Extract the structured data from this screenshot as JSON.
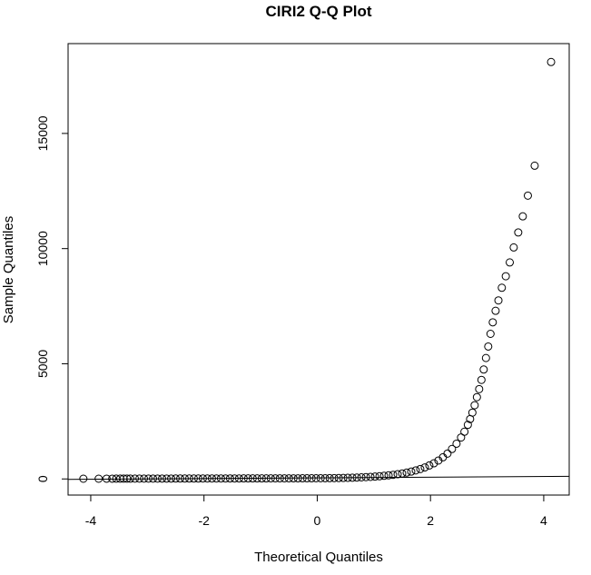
{
  "chart_data": {
    "type": "scatter",
    "title": "CIRI2 Q-Q Plot",
    "xlabel": "Theoretical Quantiles",
    "ylabel": "Sample Quantiles",
    "xlim": [
      -4.4,
      4.45
    ],
    "ylim": [
      -700,
      18900
    ],
    "x_ticks": [
      -4,
      -2,
      0,
      2,
      4
    ],
    "y_ticks": [
      0,
      5000,
      10000,
      15000
    ],
    "x_tick_labels": [
      "-4",
      "-2",
      "0",
      "2",
      "4"
    ],
    "y_tick_labels": [
      "0",
      "5000",
      "10000",
      "15000"
    ],
    "reference_line": {
      "x": [
        -4.4,
        4.45
      ],
      "y": [
        -20,
        115
      ]
    },
    "points": [
      [
        -4.13,
        10
      ],
      [
        -3.86,
        10
      ],
      [
        -3.72,
        12
      ],
      [
        -3.62,
        12
      ],
      [
        -3.55,
        13
      ],
      [
        -3.48,
        13
      ],
      [
        -3.42,
        14
      ],
      [
        -3.36,
        14
      ],
      [
        -3.3,
        14
      ],
      [
        -3.22,
        15
      ],
      [
        -3.14,
        15
      ],
      [
        -3.06,
        15
      ],
      [
        -2.98,
        16
      ],
      [
        -2.9,
        16
      ],
      [
        -2.82,
        16
      ],
      [
        -2.74,
        17
      ],
      [
        -2.66,
        17
      ],
      [
        -2.58,
        17
      ],
      [
        -2.5,
        18
      ],
      [
        -2.42,
        18
      ],
      [
        -2.34,
        18
      ],
      [
        -2.26,
        19
      ],
      [
        -2.18,
        19
      ],
      [
        -2.1,
        19
      ],
      [
        -2.02,
        20
      ],
      [
        -1.94,
        20
      ],
      [
        -1.86,
        20
      ],
      [
        -1.78,
        21
      ],
      [
        -1.7,
        21
      ],
      [
        -1.62,
        21
      ],
      [
        -1.54,
        22
      ],
      [
        -1.46,
        22
      ],
      [
        -1.38,
        22
      ],
      [
        -1.3,
        23
      ],
      [
        -1.22,
        23
      ],
      [
        -1.14,
        23
      ],
      [
        -1.06,
        24
      ],
      [
        -0.98,
        24
      ],
      [
        -0.9,
        24
      ],
      [
        -0.82,
        25
      ],
      [
        -0.74,
        25
      ],
      [
        -0.66,
        25
      ],
      [
        -0.58,
        26
      ],
      [
        -0.5,
        26
      ],
      [
        -0.42,
        27
      ],
      [
        -0.34,
        27
      ],
      [
        -0.26,
        28
      ],
      [
        -0.18,
        28
      ],
      [
        -0.1,
        29
      ],
      [
        -0.02,
        30
      ],
      [
        0.06,
        31
      ],
      [
        0.14,
        32
      ],
      [
        0.22,
        34
      ],
      [
        0.3,
        36
      ],
      [
        0.38,
        39
      ],
      [
        0.46,
        43
      ],
      [
        0.54,
        48
      ],
      [
        0.62,
        54
      ],
      [
        0.7,
        61
      ],
      [
        0.78,
        69
      ],
      [
        0.86,
        79
      ],
      [
        0.94,
        90
      ],
      [
        1.02,
        103
      ],
      [
        1.1,
        118
      ],
      [
        1.18,
        136
      ],
      [
        1.26,
        156
      ],
      [
        1.34,
        179
      ],
      [
        1.42,
        206
      ],
      [
        1.5,
        238
      ],
      [
        1.58,
        275
      ],
      [
        1.66,
        318
      ],
      [
        1.74,
        370
      ],
      [
        1.82,
        430
      ],
      [
        1.9,
        500
      ],
      [
        1.98,
        585
      ],
      [
        2.06,
        680
      ],
      [
        2.14,
        800
      ],
      [
        2.22,
        940
      ],
      [
        2.3,
        1100
      ],
      [
        2.38,
        1300
      ],
      [
        2.46,
        1530
      ],
      [
        2.54,
        1800
      ],
      [
        2.6,
        2050
      ],
      [
        2.66,
        2350
      ],
      [
        2.7,
        2600
      ],
      [
        2.74,
        2880
      ],
      [
        2.78,
        3200
      ],
      [
        2.82,
        3550
      ],
      [
        2.86,
        3900
      ],
      [
        2.9,
        4300
      ],
      [
        2.94,
        4750
      ],
      [
        2.98,
        5250
      ],
      [
        3.02,
        5750
      ],
      [
        3.06,
        6300
      ],
      [
        3.1,
        6800
      ],
      [
        3.15,
        7300
      ],
      [
        3.2,
        7750
      ],
      [
        3.26,
        8300
      ],
      [
        3.33,
        8800
      ],
      [
        3.4,
        9400
      ],
      [
        3.47,
        10050
      ],
      [
        3.55,
        10700
      ],
      [
        3.63,
        11400
      ],
      [
        3.72,
        12300
      ],
      [
        3.84,
        13600
      ],
      [
        4.13,
        18100
      ]
    ]
  }
}
